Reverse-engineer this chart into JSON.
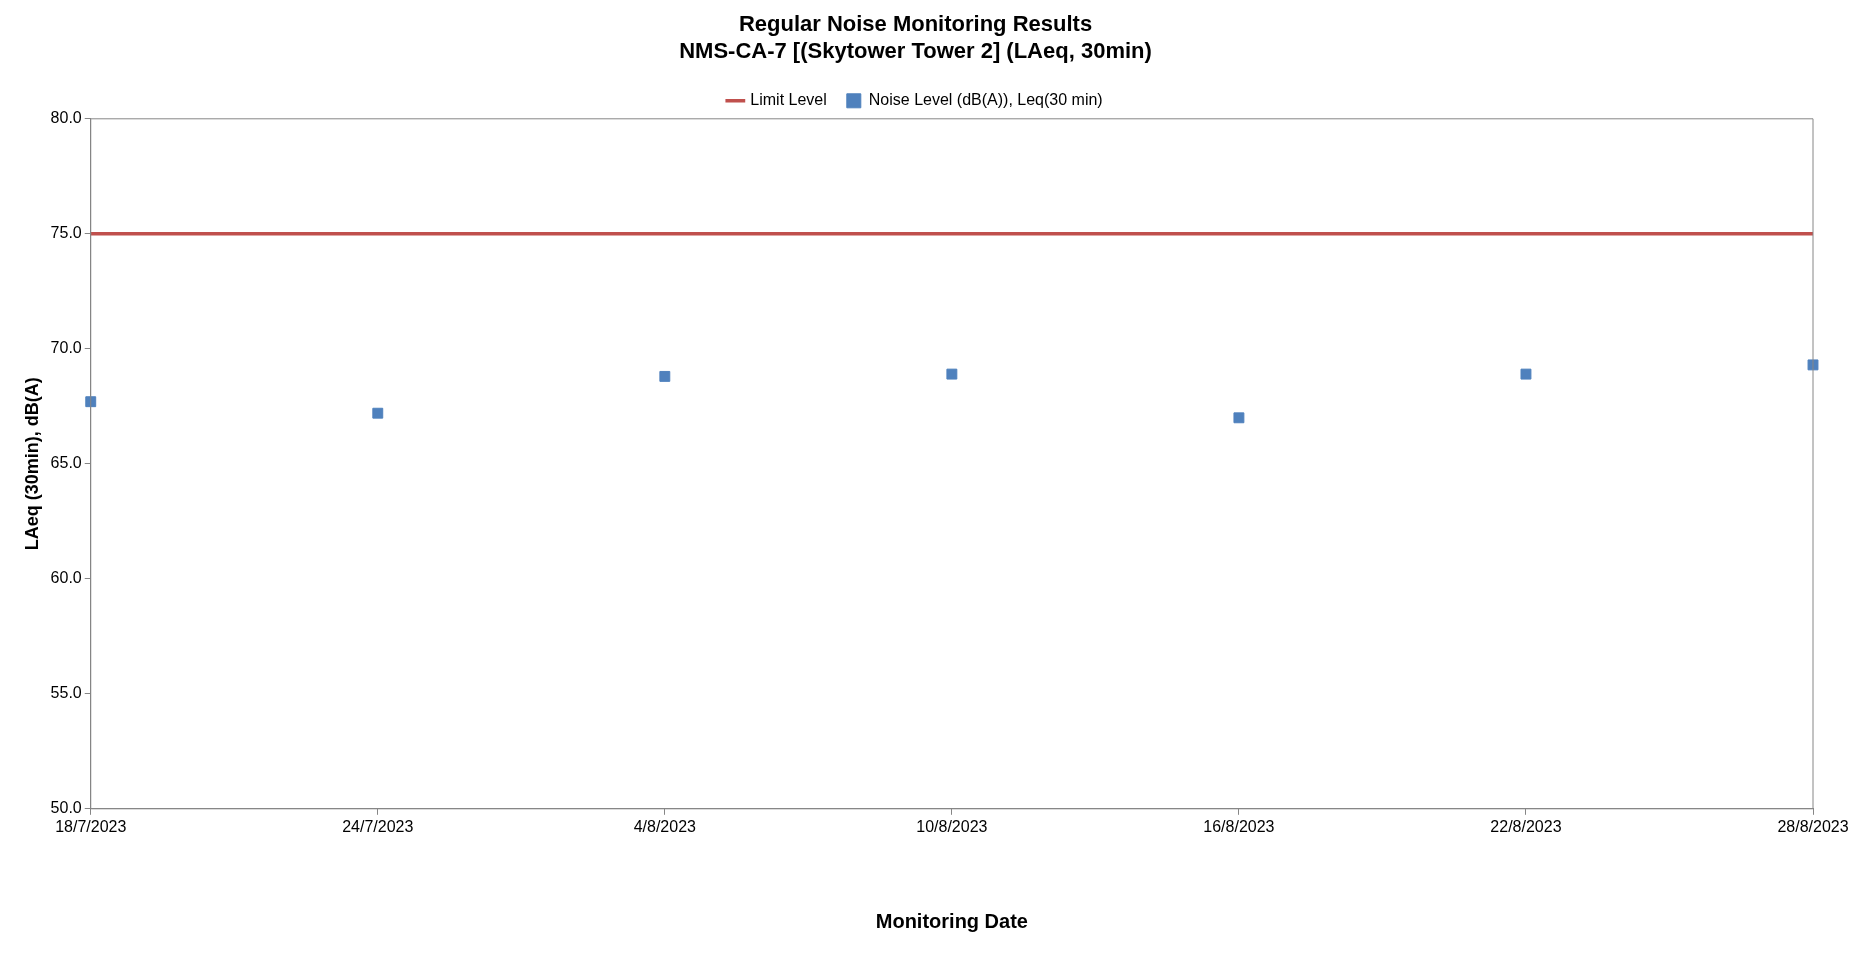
{
  "chart_data": {
    "type": "scatter",
    "title": "Regular Noise Monitoring Results\nNMS-CA-7 [(Skytower Tower 2] (LAeq, 30min)",
    "xlabel": "Monitoring Date",
    "ylabel": "LAeq (30min), dB(A)",
    "categories": [
      "18/7/2023",
      "24/7/2023",
      "4/8/2023",
      "10/8/2023",
      "16/8/2023",
      "22/8/2023",
      "28/8/2023"
    ],
    "series": [
      {
        "name": "Limit Level",
        "type": "line",
        "color": "#c0504d",
        "marker": "none",
        "values": [
          75,
          75,
          75,
          75,
          75,
          75,
          75
        ]
      },
      {
        "name": "Noise Level (dB(A)), Leq(30 min)",
        "type": "scatter",
        "color": "#4f81bd",
        "marker": "square",
        "values": [
          67.7,
          67.2,
          68.8,
          68.9,
          67.0,
          68.9,
          69.3
        ]
      }
    ],
    "ylim": [
      50,
      80
    ],
    "yticks": [
      {
        "value": 50,
        "label": "50.0"
      },
      {
        "value": 55,
        "label": "55.0"
      },
      {
        "value": 60,
        "label": "60.0"
      },
      {
        "value": 65,
        "label": "65.0"
      },
      {
        "value": 70,
        "label": "70.0"
      },
      {
        "value": 75,
        "label": "75.0"
      },
      {
        "value": 80,
        "label": "80.0"
      }
    ],
    "grid": false,
    "legend": "top"
  }
}
